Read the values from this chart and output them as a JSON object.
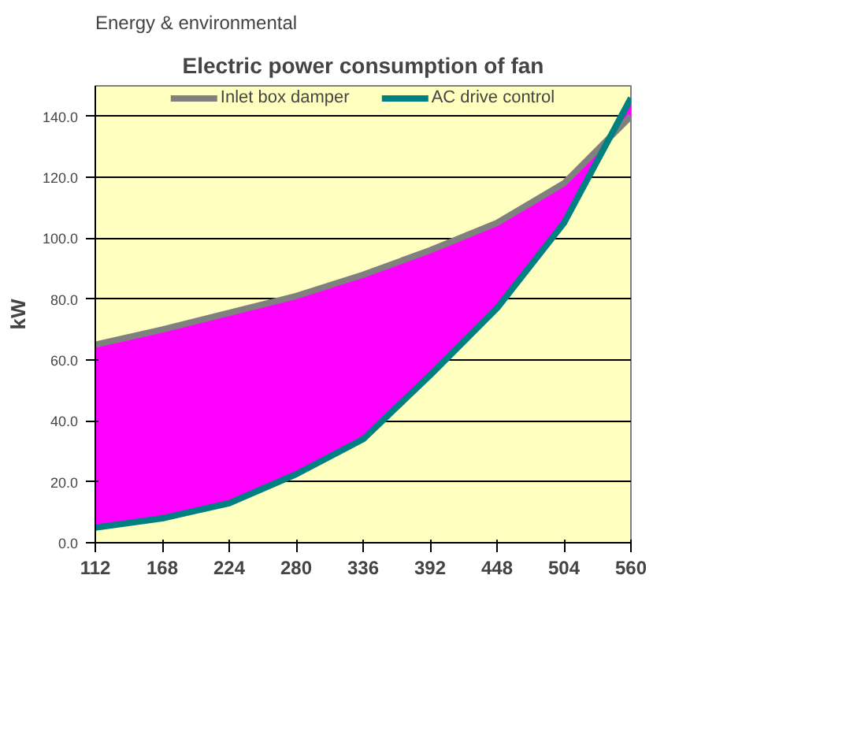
{
  "chart_data": {
    "type": "line",
    "title": "Electric power consumption of fan",
    "ylabel": "kW",
    "annotations": [
      "Energy & environmental"
    ],
    "x": [
      112,
      168,
      224,
      280,
      336,
      392,
      448,
      504,
      560
    ],
    "series": [
      {
        "name": "Inlet box damper",
        "color": "#808080",
        "values": [
          65,
          70,
          75.5,
          81,
          88,
          96,
          105,
          118,
          140
        ],
        "lower": [
          5,
          8,
          13,
          22.5,
          34,
          55,
          77,
          105,
          146
        ],
        "upper": [
          65,
          70,
          75.5,
          81,
          88,
          96,
          105,
          118,
          140
        ]
      },
      {
        "name": "AC drive control",
        "color": "#008080",
        "values": [
          5,
          8,
          13,
          22.5,
          34,
          55,
          77,
          105,
          146
        ]
      }
    ],
    "xlim": [
      112,
      560
    ],
    "xticks": [
      112,
      168,
      224,
      280,
      336,
      392,
      448,
      504,
      560
    ],
    "ylim": [
      0,
      150
    ],
    "yticks": [
      {
        "value": 0,
        "label": "0.0"
      },
      {
        "value": 20,
        "label": "20.0"
      },
      {
        "value": 40,
        "label": "40.0"
      },
      {
        "value": 60,
        "label": "60.0"
      },
      {
        "value": 80,
        "label": "80.0"
      },
      {
        "value": 100,
        "label": "100.0"
      },
      {
        "value": 120,
        "label": "120.0"
      },
      {
        "value": 140,
        "label": "140.0"
      }
    ],
    "grid": "y",
    "legend": "top",
    "marker": "none",
    "line_style": "solid"
  }
}
